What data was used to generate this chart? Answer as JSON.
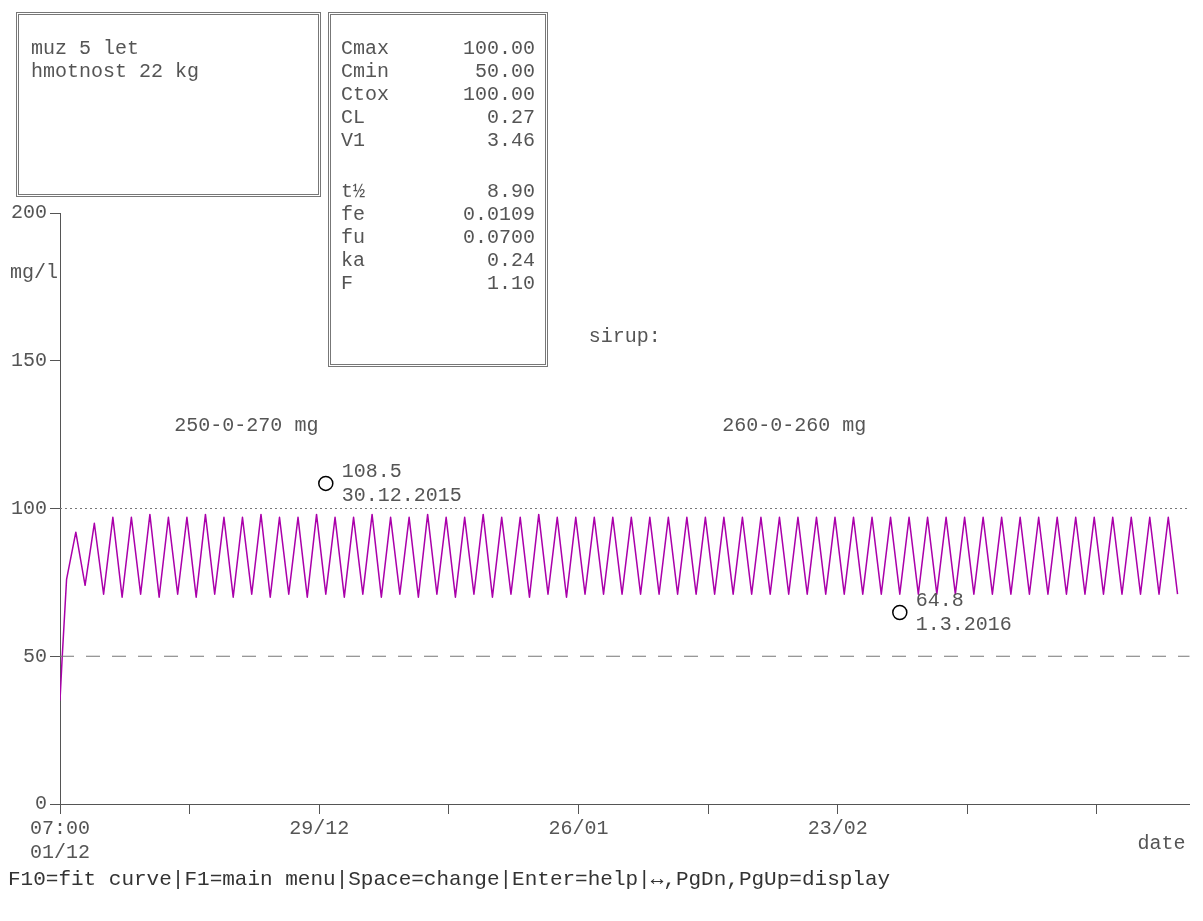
{
  "chart_data": {
    "type": "line",
    "xlabel": "date",
    "ylabel": "mg/l",
    "xlim": [
      "2015-12-01T07:00",
      "2016-04-01T07:00"
    ],
    "xticks": [
      {
        "value": "2015-12-01T07:00",
        "label": "07:00\n01/12"
      },
      {
        "value": "2015-12-15T07:00",
        "label": null
      },
      {
        "value": "2015-12-29T07:00",
        "label": "29/12"
      },
      {
        "value": "2016-01-12T07:00",
        "label": null
      },
      {
        "value": "2016-01-26T07:00",
        "label": "26/01"
      },
      {
        "value": "2016-02-09T07:00",
        "label": null
      },
      {
        "value": "2016-02-23T07:00",
        "label": "23/02"
      },
      {
        "value": "2016-03-08T07:00",
        "label": null
      },
      {
        "value": "2016-03-22T07:00",
        "label": null
      }
    ],
    "ylim": [
      0,
      200
    ],
    "yticks": [
      0,
      50,
      100,
      150,
      200
    ],
    "series": [
      {
        "color": "#aa00aa",
        "marker": "none",
        "line_style": "solid",
        "x": [
          "2015-12-01T07:00",
          "2015-12-01T12:00",
          "2015-12-02",
          "2015-12-03",
          "2015-12-04",
          "2015-12-05",
          "2015-12-06",
          "2015-12-07",
          "2015-12-08",
          "2015-12-09",
          "2015-12-10",
          "2015-12-11",
          "2015-12-12",
          "2015-12-13",
          "2015-12-14",
          "2015-12-15",
          "2015-12-16",
          "2015-12-17",
          "2015-12-18",
          "2015-12-19",
          "2015-12-20",
          "2015-12-21",
          "2015-12-22",
          "2015-12-23",
          "2015-12-24",
          "2015-12-25",
          "2015-12-26",
          "2015-12-27",
          "2015-12-28",
          "2015-12-29",
          "2015-12-30",
          "2015-12-31",
          "2016-01-01",
          "2016-01-02",
          "2016-01-03",
          "2016-01-04",
          "2016-01-05",
          "2016-01-06",
          "2016-01-07",
          "2016-01-08",
          "2016-01-09",
          "2016-01-10",
          "2016-01-11",
          "2016-01-12",
          "2016-01-13",
          "2016-01-14",
          "2016-01-15",
          "2016-01-16",
          "2016-01-17",
          "2016-01-18",
          "2016-01-19",
          "2016-01-20",
          "2016-01-21",
          "2016-01-22",
          "2016-01-23",
          "2016-01-24",
          "2016-01-25",
          "2016-01-26",
          "2016-01-27",
          "2016-01-28",
          "2016-01-29",
          "2016-01-30",
          "2016-01-31",
          "2016-02-01",
          "2016-02-02",
          "2016-02-03",
          "2016-02-04",
          "2016-02-05",
          "2016-02-06",
          "2016-02-07",
          "2016-02-08",
          "2016-02-09",
          "2016-02-10",
          "2016-02-11",
          "2016-02-12",
          "2016-02-13",
          "2016-02-14",
          "2016-02-15",
          "2016-02-16",
          "2016-02-17",
          "2016-02-18",
          "2016-02-19",
          "2016-02-20",
          "2016-02-21",
          "2016-02-22",
          "2016-02-23",
          "2016-02-24",
          "2016-02-25",
          "2016-02-26",
          "2016-02-27",
          "2016-02-28",
          "2016-02-29",
          "2016-03-01",
          "2016-03-02",
          "2016-03-03",
          "2016-03-04",
          "2016-03-05",
          "2016-03-06",
          "2016-03-07",
          "2016-03-08",
          "2016-03-09",
          "2016-03-10",
          "2016-03-11",
          "2016-03-12",
          "2016-03-13",
          "2016-03-14",
          "2016-03-15",
          "2016-03-16",
          "2016-03-17",
          "2016-03-18",
          "2016-03-19",
          "2016-03-20",
          "2016-03-21",
          "2016-03-22",
          "2016-03-23",
          "2016-03-24",
          "2016-03-25",
          "2016-03-26",
          "2016-03-27",
          "2016-03-28",
          "2016-03-29",
          "2016-03-30",
          "2016-03-31"
        ],
        "values": [
          35,
          48,
          76,
          92,
          74,
          95,
          71,
          97,
          70,
          97,
          71,
          98,
          70,
          97,
          71,
          97,
          70,
          98,
          71,
          97,
          70,
          97,
          71,
          98,
          70,
          97,
          71,
          97,
          70,
          98,
          71,
          97,
          70,
          97,
          71,
          98,
          70,
          97,
          71,
          97,
          70,
          98,
          71,
          97,
          70,
          97,
          71,
          98,
          70,
          97,
          71,
          97,
          70,
          98,
          71,
          97,
          70,
          97,
          71,
          97,
          71,
          97,
          71,
          97,
          71,
          97,
          71,
          97,
          71,
          97,
          71,
          97,
          71,
          97,
          71,
          97,
          71,
          97,
          71,
          97,
          71,
          97,
          71,
          97,
          71,
          97,
          71,
          97,
          71,
          97,
          71,
          97,
          71,
          97,
          71,
          97,
          71,
          97,
          71,
          97,
          71,
          97,
          71,
          97,
          71,
          97,
          71,
          97,
          71,
          97,
          71,
          97,
          71,
          97,
          71,
          97,
          71,
          97,
          71,
          97,
          71,
          97,
          71
        ]
      },
      {
        "type": "scatter",
        "color": "#000000",
        "marker": "circle",
        "x": [
          "2015-12-30",
          "2016-03-01"
        ],
        "values": [
          108.5,
          64.8
        ],
        "value_labels": [
          "108.5\n30.12.2015",
          "64.8\n1.3.2016"
        ]
      }
    ],
    "ref_lines": [
      {
        "axis": "y",
        "value": 100,
        "color": "#777777",
        "line_style": "dotted"
      },
      {
        "axis": "y",
        "value": 50,
        "color": "#777777",
        "line_style": "dashed"
      }
    ],
    "annotations": [
      "muz 5 let",
      "hmotnost 22 kg",
      "Cmax 100.00",
      "Cmin 50.00",
      "Ctox 100.00",
      "CL 0.27",
      "V1 3.46",
      "t½ 8.90",
      "fe 0.0109",
      "fu 0.0700",
      "ka 0.24",
      "F 1.10",
      "sirup:",
      "250-0-270 mg",
      "260-0-260 mg",
      "F10=fit curve|F1=main menu|Space=change|Enter=help|↔,PgDn,PgUp=display"
    ]
  }
}
